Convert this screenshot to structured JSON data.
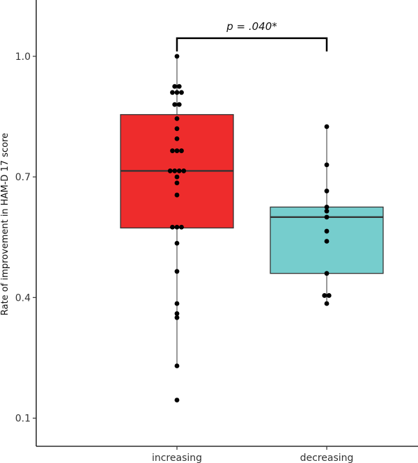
{
  "chart_data": {
    "type": "box",
    "title": "",
    "xlabel": "",
    "ylabel": "Rate of improvement in HAM-D 17 score",
    "ylim": [
      0.03,
      1.14
    ],
    "yticks": [
      0.1,
      0.4,
      0.7,
      1.0
    ],
    "ytick_labels": [
      "0.1",
      "0.4",
      "0.7",
      "1.0"
    ],
    "grid": false,
    "categories": [
      "increasing",
      "decreasing"
    ],
    "groups": [
      {
        "name": "increasing",
        "color": "#EE2C2C",
        "box": {
          "min": 0.23,
          "q1": 0.573,
          "median": 0.715,
          "q3": 0.855,
          "max": 1.0
        },
        "points": [
          1.0,
          0.925,
          0.925,
          0.91,
          0.91,
          0.91,
          0.88,
          0.88,
          0.845,
          0.82,
          0.795,
          0.765,
          0.765,
          0.765,
          0.715,
          0.715,
          0.715,
          0.715,
          0.7,
          0.685,
          0.655,
          0.575,
          0.575,
          0.575,
          0.535,
          0.465,
          0.385,
          0.36,
          0.35,
          0.23,
          0.145
        ]
      },
      {
        "name": "decreasing",
        "color": "#76CDCD",
        "box": {
          "min": 0.385,
          "q1": 0.46,
          "median": 0.6,
          "q3": 0.625,
          "max": 0.82
        },
        "points": [
          0.825,
          0.73,
          0.665,
          0.625,
          0.615,
          0.6,
          0.565,
          0.54,
          0.46,
          0.405,
          0.405,
          0.385
        ]
      }
    ],
    "annotation": {
      "text": "p = .040*",
      "from": "increasing",
      "to": "decreasing",
      "y": 1.045
    }
  }
}
